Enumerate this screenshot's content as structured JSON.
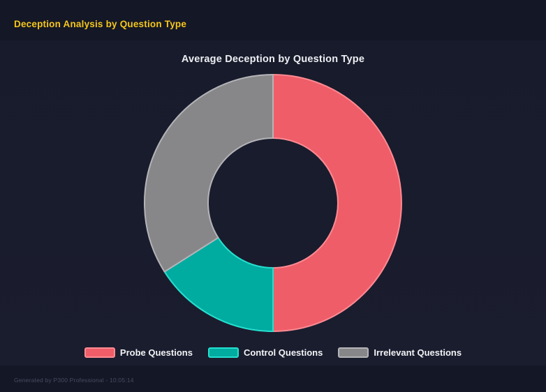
{
  "page": {
    "title": "Deception Analysis by Question Type"
  },
  "chart": {
    "title": "Average Deception by Question Type"
  },
  "chart_data": {
    "type": "doughnut",
    "title": "Average Deception by Question Type",
    "labels": [
      "Probe Questions",
      "Control Questions",
      "Irrelevant Questions"
    ],
    "values": [
      50,
      16,
      34
    ],
    "unit": "percent-of-circle",
    "colors": [
      "#ee5d68",
      "#00aba0",
      "#87878a"
    ],
    "border_colors": [
      "#ff8a93",
      "#25e0cf",
      "#b4b4b8"
    ],
    "cutout": "50%",
    "start_angle_deg": 0,
    "direction": "clockwise",
    "legend_position": "bottom",
    "grid": false
  },
  "footer": {
    "note": "Generated by P300 Professional - 10:05:14"
  },
  "colors": {
    "page_background": "#141726",
    "canvas_background": "#1a1d2e",
    "page_title": "#f5c71a",
    "chart_title": "#eceef2",
    "legend_text": "#f2f3f5",
    "footer_text": "#464b5e"
  }
}
